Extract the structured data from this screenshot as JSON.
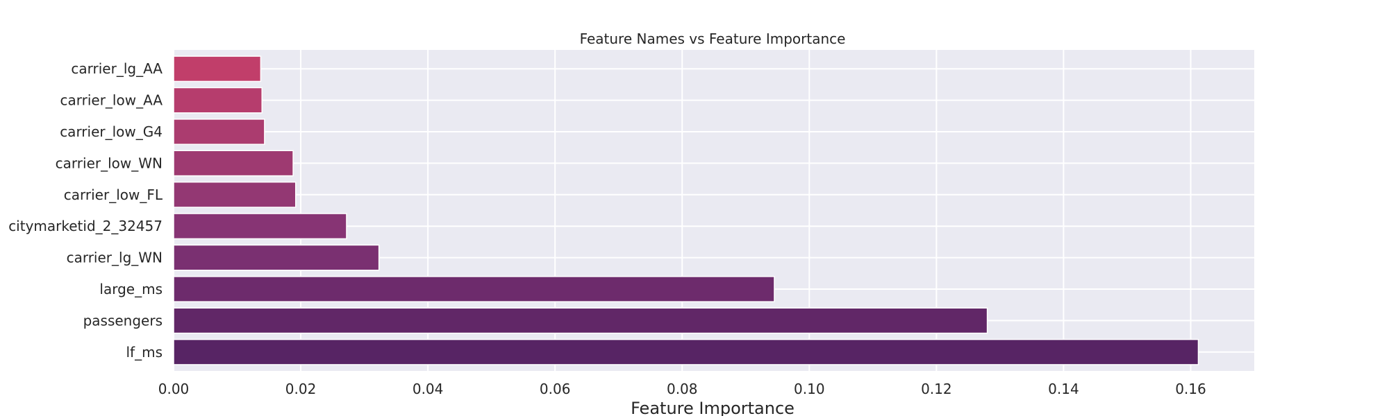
{
  "chart_data": {
    "type": "bar",
    "orientation": "horizontal",
    "title": "Feature Names vs Feature Importance",
    "xlabel": "Feature Importance",
    "ylabel": "",
    "xlim": [
      0,
      0.17
    ],
    "xticks": [
      0.0,
      0.02,
      0.04,
      0.06,
      0.08,
      0.1,
      0.12,
      0.14,
      0.16
    ],
    "xtick_labels": [
      "0.00",
      "0.02",
      "0.04",
      "0.06",
      "0.08",
      "0.10",
      "0.12",
      "0.14",
      "0.16"
    ],
    "grid": true,
    "plot_background": "#eaeaf2",
    "categories": [
      "carrier_lg_AA",
      "carrier_low_AA",
      "carrier_low_G4",
      "carrier_low_WN",
      "carrier_low_FL",
      "citymarketid_2_32457",
      "carrier_lg_WN",
      "large_ms",
      "passengers",
      "lf_ms"
    ],
    "values": [
      0.0137,
      0.0139,
      0.0143,
      0.0188,
      0.0192,
      0.0272,
      0.0323,
      0.0945,
      0.128,
      0.1612
    ],
    "colors": [
      "#c13e6a",
      "#b63d6d",
      "#ab3c6f",
      "#9e3a71",
      "#933873",
      "#873474",
      "#7a3071",
      "#6d2b6c",
      "#612767",
      "#572464"
    ]
  }
}
